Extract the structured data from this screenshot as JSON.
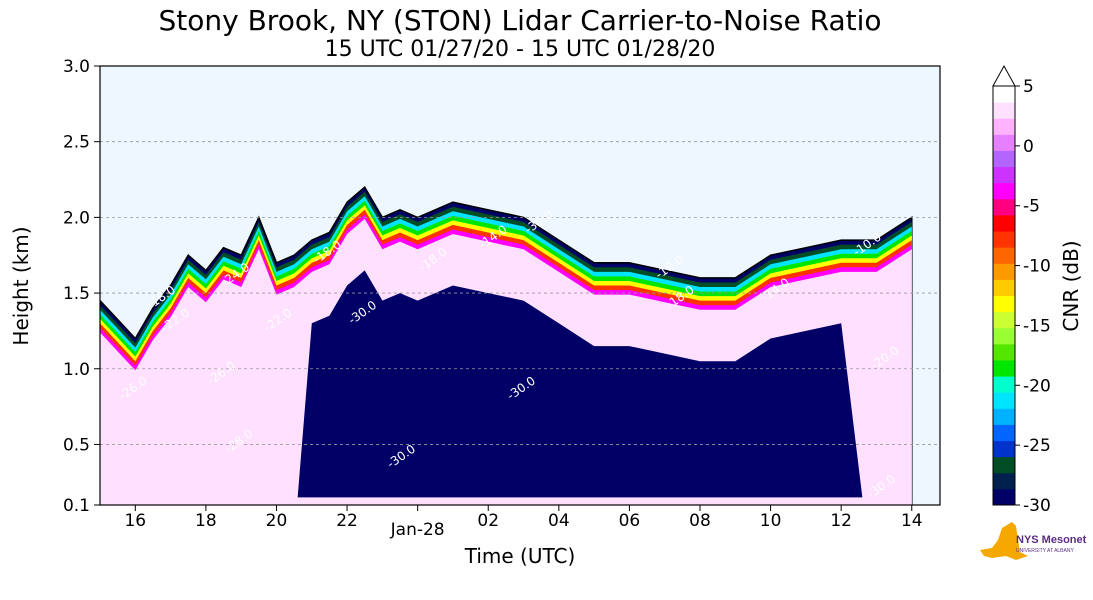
{
  "chart_data": {
    "type": "heatmap",
    "title": "Stony Brook, NY (STON) Lidar Carrier-to-Noise Ratio",
    "subtitle": "15 UTC 01/27/20 - 15 UTC 01/28/20",
    "xlabel": "Time (UTC)",
    "ylabel": "Height (km)",
    "xlim": [
      15,
      38.8
    ],
    "ylim": [
      0.1,
      3.0
    ],
    "x_ticks": [
      {
        "value": 16,
        "label": "16"
      },
      {
        "value": 18,
        "label": "18"
      },
      {
        "value": 20,
        "label": "20"
      },
      {
        "value": 22,
        "label": "22"
      },
      {
        "value": 24,
        "label": "Jan-28"
      },
      {
        "value": 26,
        "label": "02"
      },
      {
        "value": 28,
        "label": "04"
      },
      {
        "value": 30,
        "label": "06"
      },
      {
        "value": 32,
        "label": "08"
      },
      {
        "value": 34,
        "label": "10"
      },
      {
        "value": 36,
        "label": "12"
      },
      {
        "value": 38,
        "label": "14"
      }
    ],
    "y_ticks": [
      {
        "value": 0.1,
        "label": "0.1"
      },
      {
        "value": 0.5,
        "label": "0.5"
      },
      {
        "value": 1.0,
        "label": "1.0"
      },
      {
        "value": 1.5,
        "label": "1.5"
      },
      {
        "value": 2.0,
        "label": "2.0"
      },
      {
        "value": 2.5,
        "label": "2.5"
      },
      {
        "value": 3.0,
        "label": "3.0"
      }
    ],
    "grid": "horizontal dashed",
    "colorbar": {
      "label": "CNR (dB)",
      "min": -30,
      "max": 5,
      "ticks": [
        {
          "value": 5,
          "label": "5"
        },
        {
          "value": 0,
          "label": "0"
        },
        {
          "value": -5,
          "label": "-5"
        },
        {
          "value": -10,
          "label": "-10"
        },
        {
          "value": -15,
          "label": "-15"
        },
        {
          "value": -20,
          "label": "-20"
        },
        {
          "value": -25,
          "label": "-25"
        },
        {
          "value": -30,
          "label": "-30"
        }
      ],
      "colors": [
        "#000066",
        "#00204d",
        "#004d26",
        "#0033cc",
        "#0066ff",
        "#00b2ff",
        "#00e5ff",
        "#00ffcc",
        "#00e600",
        "#55e600",
        "#99ff33",
        "#ccff33",
        "#ffff00",
        "#ffcc00",
        "#ff9900",
        "#ff6600",
        "#ff3300",
        "#ff0000",
        "#ff0080",
        "#ff00ff",
        "#cc33ff",
        "#b266ff",
        "#e680ff",
        "#ffb3ff",
        "#ffe0ff",
        "#ffffff"
      ]
    },
    "background_color": "#eef6ff",
    "cloud_top_km": [
      {
        "x": 15.0,
        "y": 1.45
      },
      {
        "x": 16.0,
        "y": 1.2
      },
      {
        "x": 16.5,
        "y": 1.4
      },
      {
        "x": 17.0,
        "y": 1.55
      },
      {
        "x": 17.5,
        "y": 1.75
      },
      {
        "x": 18.0,
        "y": 1.65
      },
      {
        "x": 18.5,
        "y": 1.8
      },
      {
        "x": 19.0,
        "y": 1.75
      },
      {
        "x": 19.5,
        "y": 2.0
      },
      {
        "x": 20.0,
        "y": 1.7
      },
      {
        "x": 20.5,
        "y": 1.75
      },
      {
        "x": 21.0,
        "y": 1.85
      },
      {
        "x": 21.5,
        "y": 1.9
      },
      {
        "x": 22.0,
        "y": 2.1
      },
      {
        "x": 22.5,
        "y": 2.2
      },
      {
        "x": 23.0,
        "y": 2.0
      },
      {
        "x": 23.5,
        "y": 2.05
      },
      {
        "x": 24.0,
        "y": 2.0
      },
      {
        "x": 25.0,
        "y": 2.1
      },
      {
        "x": 26.0,
        "y": 2.05
      },
      {
        "x": 27.0,
        "y": 2.0
      },
      {
        "x": 28.0,
        "y": 1.85
      },
      {
        "x": 29.0,
        "y": 1.7
      },
      {
        "x": 30.0,
        "y": 1.7
      },
      {
        "x": 31.0,
        "y": 1.65
      },
      {
        "x": 32.0,
        "y": 1.6
      },
      {
        "x": 33.0,
        "y": 1.6
      },
      {
        "x": 34.0,
        "y": 1.75
      },
      {
        "x": 35.0,
        "y": 1.8
      },
      {
        "x": 36.0,
        "y": 1.85
      },
      {
        "x": 37.0,
        "y": 1.85
      },
      {
        "x": 38.0,
        "y": 2.0
      }
    ],
    "contour_labels": [
      {
        "x": 16.8,
        "y": 1.45,
        "text": "-18.0"
      },
      {
        "x": 17.2,
        "y": 1.3,
        "text": "-22.0"
      },
      {
        "x": 18.9,
        "y": 1.6,
        "text": "-24.0"
      },
      {
        "x": 16.0,
        "y": 0.85,
        "text": "-26.0"
      },
      {
        "x": 18.5,
        "y": 0.95,
        "text": "-26.0"
      },
      {
        "x": 19.0,
        "y": 0.5,
        "text": "-28.0"
      },
      {
        "x": 20.1,
        "y": 1.3,
        "text": "-22.0"
      },
      {
        "x": 21.5,
        "y": 1.75,
        "text": "-18.0"
      },
      {
        "x": 22.5,
        "y": 1.35,
        "text": "-30.0"
      },
      {
        "x": 24.5,
        "y": 1.7,
        "text": "-18.0"
      },
      {
        "x": 26.2,
        "y": 1.85,
        "text": "-14.0"
      },
      {
        "x": 27.5,
        "y": 1.95,
        "text": "-30.0"
      },
      {
        "x": 27.0,
        "y": 0.85,
        "text": "-30.0"
      },
      {
        "x": 23.6,
        "y": 0.4,
        "text": "-30.0"
      },
      {
        "x": 31.2,
        "y": 1.65,
        "text": "-18.0"
      },
      {
        "x": 31.5,
        "y": 1.45,
        "text": "-18.0"
      },
      {
        "x": 34.2,
        "y": 1.5,
        "text": "-14.0"
      },
      {
        "x": 36.8,
        "y": 1.8,
        "text": "-10.0"
      },
      {
        "x": 37.3,
        "y": 1.05,
        "text": "-20.0"
      },
      {
        "x": 37.2,
        "y": 0.2,
        "text": "-30.0"
      }
    ]
  },
  "logo": {
    "text": "NYS Mesonet",
    "subtext": "UNIVERSITY AT ALBANY",
    "color": "#5b2d82",
    "state_color": "#f5a800"
  }
}
